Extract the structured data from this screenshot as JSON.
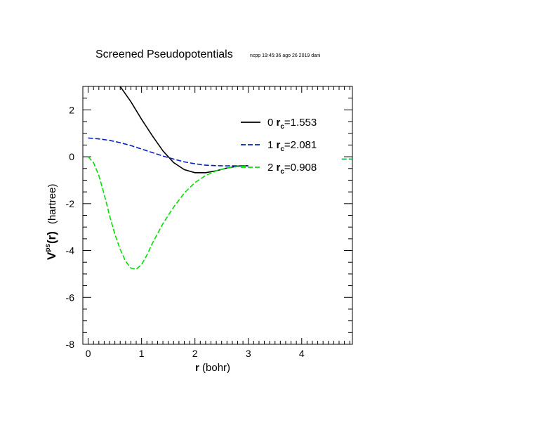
{
  "chart_data": {
    "type": "line",
    "title": "Screened Pseudopotentials",
    "subtitle": "ncpp 19:45:36 ago 26 2019 dani",
    "xlabel": {
      "bold": "r",
      "rest": " (bohr)"
    },
    "ylabel": {
      "base": "V",
      "sup": "ps",
      "arg": "(r)",
      "unit": "(hartree)"
    },
    "xlim": [
      -0.1,
      4.95
    ],
    "ylim": [
      -8,
      3
    ],
    "xticks": [
      0,
      1,
      2,
      3,
      4
    ],
    "yticks": [
      -8,
      -6,
      -4,
      -2,
      0,
      2
    ],
    "xtick_labels": [
      "0",
      "1",
      "2",
      "3",
      "4"
    ],
    "ytick_labels": [
      "-8",
      "-6",
      "-4",
      "-2",
      "0",
      "2"
    ],
    "legend_position": "top-right",
    "series": [
      {
        "name": "0",
        "rc_label": "r",
        "rc_sub": "c",
        "rc_value": "=1.553",
        "color": "#000000",
        "style": "solid",
        "x": [
          0.6,
          0.8,
          1.0,
          1.2,
          1.4,
          1.5,
          1.6,
          1.8,
          2.0,
          2.2,
          2.4,
          2.6,
          2.8,
          3.0
        ],
        "y": [
          3.0,
          2.35,
          1.6,
          0.9,
          0.25,
          0.0,
          -0.25,
          -0.55,
          -0.68,
          -0.68,
          -0.6,
          -0.48,
          -0.4,
          -0.38
        ]
      },
      {
        "name": "1",
        "rc_label": "r",
        "rc_sub": "c",
        "rc_value": "=2.081",
        "color": "#0020c0",
        "style": "dashed",
        "x": [
          0.0,
          0.2,
          0.4,
          0.6,
          0.8,
          1.0,
          1.2,
          1.4,
          1.6,
          1.8,
          2.0,
          2.2,
          2.4,
          2.6,
          2.8,
          3.0
        ],
        "y": [
          0.8,
          0.76,
          0.7,
          0.6,
          0.48,
          0.33,
          0.18,
          0.03,
          -0.1,
          -0.22,
          -0.3,
          -0.36,
          -0.38,
          -0.39,
          -0.39,
          -0.39
        ]
      },
      {
        "name": "2",
        "rc_label": "r",
        "rc_sub": "c",
        "rc_value": "=0.908",
        "color": "#00e000",
        "style": "dashed",
        "x": [
          0.0,
          0.1,
          0.2,
          0.3,
          0.4,
          0.5,
          0.6,
          0.7,
          0.8,
          0.9,
          1.0,
          1.1,
          1.2,
          1.4,
          1.6,
          1.8,
          2.0,
          2.2,
          2.4,
          2.6,
          2.8,
          3.0
        ],
        "y": [
          0.0,
          -0.25,
          -0.8,
          -1.6,
          -2.5,
          -3.3,
          -3.95,
          -4.45,
          -4.75,
          -4.8,
          -4.6,
          -4.2,
          -3.7,
          -2.85,
          -2.15,
          -1.55,
          -1.1,
          -0.8,
          -0.6,
          -0.48,
          -0.42,
          -0.39
        ]
      }
    ],
    "tail": {
      "x": [
        4.75,
        4.95
      ],
      "y": [
        -0.1,
        -0.1
      ],
      "color": "#00aa44"
    }
  }
}
